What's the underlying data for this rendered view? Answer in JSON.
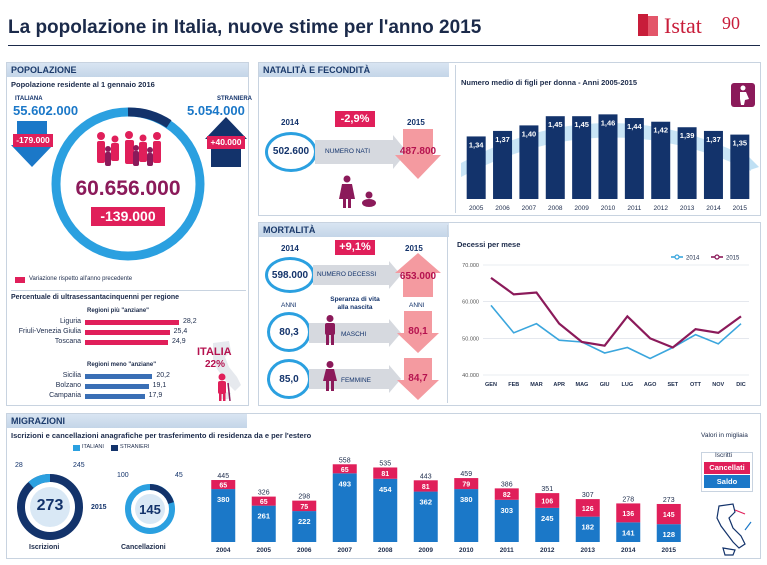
{
  "title": "La popolazione in Italia, nuove stime per l'anno 2015",
  "logo": {
    "text": "Istat",
    "suffix": "90"
  },
  "popolazione": {
    "header": "POPOLAZIONE",
    "subtitle": "Popolazione residente al 1 gennaio 2016",
    "italiana_label": "ITALIANA",
    "italiana_value": "55.602.000",
    "italiana_change": "-179.000",
    "straniera_label": "STRANIERA",
    "straniera_value": "5.054.000",
    "straniera_change": "+40.000",
    "total": "60.656.000",
    "total_change": "-139.000",
    "legend": "Variazione rispetto all'anno precedente",
    "regions_title": "Percentuale di ultrasessantacinquenni per regione",
    "most_title": "Regioni più \"anziane\"",
    "most": [
      {
        "name": "Liguria",
        "value": "28,2",
        "pct": 28.2
      },
      {
        "name": "Friuli-Venezia Giulia",
        "value": "25,4",
        "pct": 25.4
      },
      {
        "name": "Toscana",
        "value": "24,9",
        "pct": 24.9
      }
    ],
    "least_title": "Regioni meno \"anziane\"",
    "least": [
      {
        "name": "Sicilia",
        "value": "20,2",
        "pct": 20.2
      },
      {
        "name": "Bolzano",
        "value": "19,1",
        "pct": 19.1
      },
      {
        "name": "Campania",
        "value": "17,9",
        "pct": 17.9
      }
    ],
    "italia_label": "ITALIA",
    "italia_value": "22%"
  },
  "natalita": {
    "header": "NATALITÀ E FECONDITÀ",
    "year_left": "2014",
    "year_right": "2015",
    "change": "-2,9%",
    "nati_2014": "502.600",
    "nati_label": "NUMERO NATI",
    "nati_2015": "487.800",
    "chart_title": "Numero medio di figli per donna - Anni 2005-2015"
  },
  "mortalita": {
    "header": "MORTALITÀ",
    "year_left": "2014",
    "year_right": "2015",
    "change": "+9,1%",
    "decessi_2014": "598.000",
    "decessi_label": "NUMERO DECESSI",
    "decessi_2015": "653.000",
    "anni_label": "ANNI",
    "speranza_label": "Speranza di vita alla nascita",
    "maschi_label": "MASCHI",
    "maschi_2014": "80,3",
    "maschi_2015": "80,1",
    "femmine_label": "FEMMINE",
    "femmine_2014": "85,0",
    "femmine_2015": "84,7",
    "chart_title": "Decessi per mese"
  },
  "migrazioni": {
    "header": "MIGRAZIONI",
    "subtitle": "Iscrizioni e cancellazioni anagrafiche per trasferimento di residenza da e per l'estero",
    "legend_italiani": "ITALIANI",
    "legend_stranieri": "STRANIERI",
    "iscrizioni_label": "Iscrizioni",
    "iscrizioni_total": "273",
    "iscrizioni_ital": "28",
    "iscrizioni_stra": "245",
    "cancellazioni_label": "Cancellazioni",
    "cancellazioni_total": "145",
    "cancellazioni_ital": "100",
    "cancellazioni_stra": "45",
    "donut_year": "2015",
    "valori_label": "Valori in migliaia",
    "legend_iscritti": "Iscritti",
    "legend_cancellati": "Cancellati",
    "legend_saldo": "Saldo"
  },
  "chart_data": [
    {
      "type": "bar",
      "title": "Numero medio di figli per donna - Anni 2005-2015",
      "categories": [
        "2005",
        "2006",
        "2007",
        "2008",
        "2009",
        "2010",
        "2011",
        "2012",
        "2013",
        "2014",
        "2015"
      ],
      "values": [
        1.34,
        1.37,
        1.4,
        1.45,
        1.45,
        1.46,
        1.44,
        1.42,
        1.39,
        1.37,
        1.35
      ],
      "labels": [
        "1,34",
        "1,37",
        "1,40",
        "1,45",
        "1,45",
        "1,46",
        "1,44",
        "1,42",
        "1,39",
        "1,37",
        "1,35"
      ]
    },
    {
      "type": "line",
      "title": "Decessi per mese",
      "categories": [
        "GEN",
        "FEB",
        "MAR",
        "APR",
        "MAG",
        "GIU",
        "LUG",
        "AGO",
        "SET",
        "OTT",
        "NOV",
        "DIC"
      ],
      "ylim": [
        40000,
        70000
      ],
      "yticks": [
        "70.000",
        "60.000",
        "50.000",
        "40.000"
      ],
      "series": [
        {
          "name": "2014",
          "color": "#3ba6dd",
          "values": [
            59000,
            51500,
            54000,
            49500,
            49000,
            46000,
            47500,
            44500,
            47500,
            51000,
            48500,
            54000
          ]
        },
        {
          "name": "2015",
          "color": "#8b1a5a",
          "values": [
            66500,
            62000,
            62500,
            54000,
            49000,
            48000,
            56000,
            50000,
            47500,
            52500,
            51500,
            56000
          ]
        }
      ]
    },
    {
      "type": "bar",
      "title": "Migrazioni",
      "categories": [
        "2004",
        "2005",
        "2006",
        "2007",
        "2008",
        "2009",
        "2010",
        "2011",
        "2012",
        "2013",
        "2014",
        "2015"
      ],
      "series": [
        {
          "name": "Saldo",
          "color": "#1b78c8",
          "values": [
            380,
            261,
            222,
            493,
            454,
            362,
            380,
            303,
            245,
            182,
            141,
            128
          ]
        },
        {
          "name": "Cancellati",
          "color": "#e01f5a",
          "values": [
            65,
            65,
            75,
            65,
            81,
            81,
            79,
            82,
            106,
            126,
            136,
            145
          ]
        }
      ],
      "totals": [
        445,
        326,
        298,
        558,
        535,
        443,
        459,
        386,
        351,
        307,
        278,
        273
      ]
    }
  ]
}
